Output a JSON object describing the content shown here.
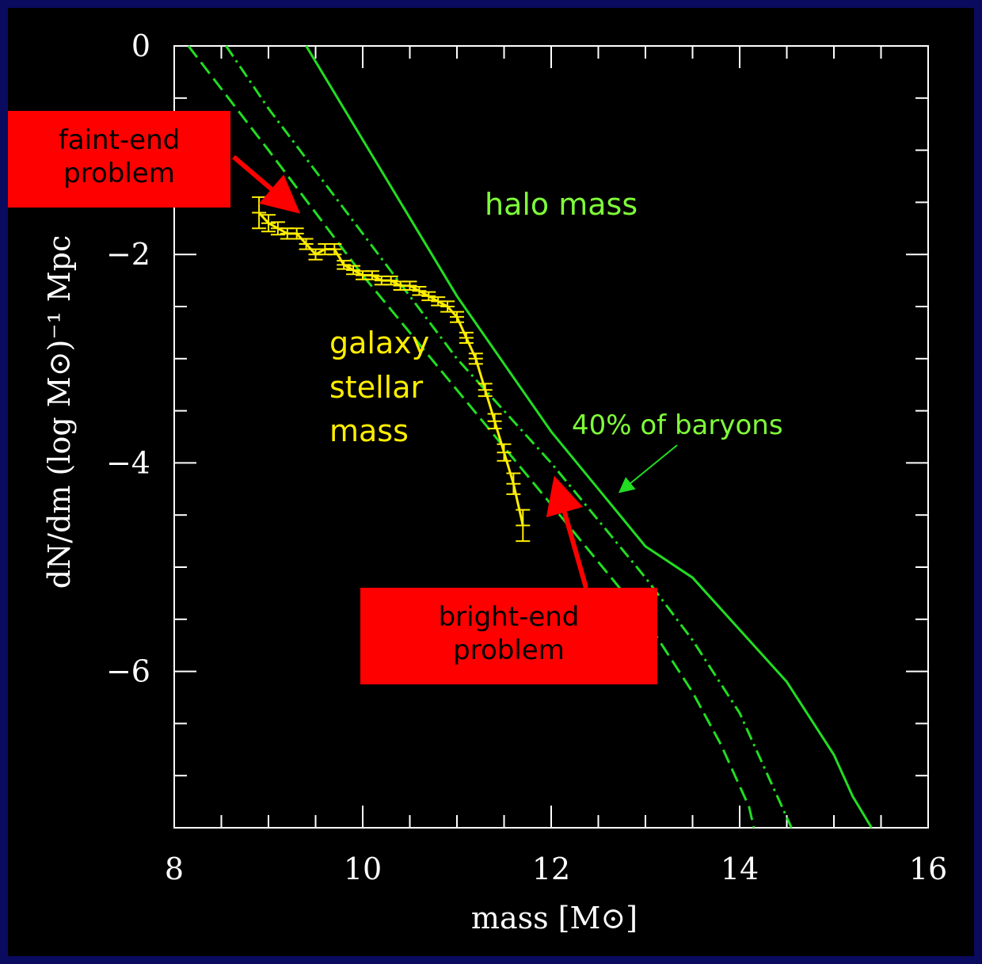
{
  "chart_data": {
    "type": "line",
    "xlabel": "mass [M⊙]",
    "ylabel": "dN/dm (log M⊙)⁻¹ Mpc",
    "xlim": [
      8,
      16
    ],
    "ylim": [
      -7.5,
      0
    ],
    "x_ticks": [
      "8",
      "10",
      "12",
      "14",
      "16"
    ],
    "y_ticks": [
      "0",
      "−2",
      "−4",
      "−6"
    ],
    "grid": false,
    "colors": {
      "background": "#000000",
      "frame": "#0a0a5e",
      "halo": "#22dd22",
      "baryon": "#22dd22",
      "galaxy": "#ffee00",
      "callout": "#ff0000",
      "axis": "#ffffff"
    },
    "series": [
      {
        "name": "halo mass",
        "style": "solid",
        "color": "#22dd22",
        "x": [
          9.4,
          10,
          11,
          12,
          13,
          13.5,
          14,
          14.5,
          15,
          15.2,
          15.4
        ],
        "y": [
          0,
          -0.9,
          -2.4,
          -3.7,
          -4.8,
          -5.1,
          -5.6,
          -6.1,
          -6.8,
          -7.2,
          -7.5
        ]
      },
      {
        "name": "",
        "style": "dashdot",
        "color": "#22dd22",
        "x": [
          8.55,
          9,
          10,
          11,
          12,
          13,
          13.5,
          14,
          14.3,
          14.5,
          14.55
        ],
        "y": [
          0,
          -0.6,
          -1.8,
          -3.0,
          -4.0,
          -5.1,
          -5.7,
          -6.4,
          -7.0,
          -7.4,
          -7.5
        ]
      },
      {
        "name": "40% of baryons",
        "style": "dashed",
        "color": "#22dd22",
        "x": [
          8.15,
          9,
          10,
          11,
          12,
          13,
          13.5,
          13.8,
          14.0,
          14.1,
          14.15
        ],
        "y": [
          0,
          -1.0,
          -2.2,
          -3.3,
          -4.4,
          -5.5,
          -6.2,
          -6.7,
          -7.1,
          -7.3,
          -7.5
        ]
      }
    ],
    "galaxy_series": {
      "name": "galaxy stellar mass",
      "color": "#ffee00",
      "x": [
        8.9,
        9.0,
        9.1,
        9.2,
        9.3,
        9.4,
        9.5,
        9.6,
        9.7,
        9.8,
        9.9,
        10.0,
        10.1,
        10.2,
        10.3,
        10.4,
        10.5,
        10.6,
        10.7,
        10.8,
        10.9,
        11.0,
        11.1,
        11.2,
        11.3,
        11.4,
        11.5,
        11.6,
        11.7
      ],
      "y": [
        -1.6,
        -1.7,
        -1.75,
        -1.8,
        -1.8,
        -1.9,
        -2.0,
        -1.95,
        -1.95,
        -2.1,
        -2.15,
        -2.2,
        -2.2,
        -2.25,
        -2.25,
        -2.3,
        -2.3,
        -2.35,
        -2.4,
        -2.45,
        -2.5,
        -2.6,
        -2.8,
        -3.0,
        -3.3,
        -3.6,
        -3.9,
        -4.2,
        -4.6
      ],
      "err": [
        0.15,
        0.08,
        0.06,
        0.05,
        0.05,
        0.05,
        0.05,
        0.05,
        0.05,
        0.04,
        0.04,
        0.04,
        0.04,
        0.04,
        0.04,
        0.04,
        0.04,
        0.04,
        0.04,
        0.04,
        0.05,
        0.05,
        0.05,
        0.05,
        0.06,
        0.07,
        0.08,
        0.1,
        0.15
      ]
    },
    "annotations": [
      {
        "text": "halo mass",
        "color": "#7fff3a"
      },
      {
        "text": "galaxy stellar mass",
        "lines": [
          "galaxy",
          "stellar",
          "mass"
        ],
        "color": "#ffee00"
      },
      {
        "text": "40% of baryons",
        "color": "#7fff3a"
      }
    ],
    "callouts": [
      {
        "lines": [
          "faint-end",
          "problem"
        ]
      },
      {
        "lines": [
          "bright-end",
          "problem"
        ]
      }
    ]
  }
}
